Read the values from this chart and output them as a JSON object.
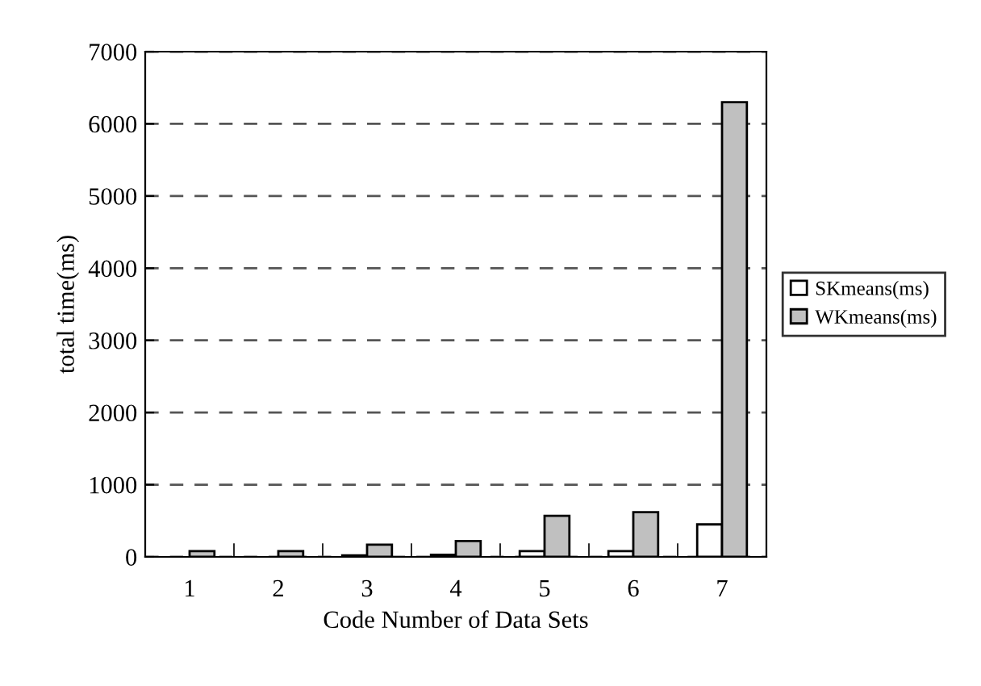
{
  "chart_data": {
    "type": "bar",
    "xlabel": "Code Number of Data Sets",
    "ylabel": "total time(ms)",
    "categories": [
      "1",
      "2",
      "3",
      "4",
      "5",
      "6",
      "7"
    ],
    "series": [
      {
        "name": "SKmeans(ms)",
        "color": "#ffffff",
        "values": [
          0,
          0,
          20,
          30,
          80,
          80,
          450
        ]
      },
      {
        "name": "WKmeans(ms)",
        "color": "#c0c0c0",
        "values": [
          80,
          80,
          170,
          220,
          570,
          620,
          6300
        ]
      }
    ],
    "ylim": [
      0,
      7000
    ],
    "yticks": [
      0,
      1000,
      2000,
      3000,
      4000,
      5000,
      6000,
      7000
    ],
    "grid": "y",
    "legend": "right"
  }
}
